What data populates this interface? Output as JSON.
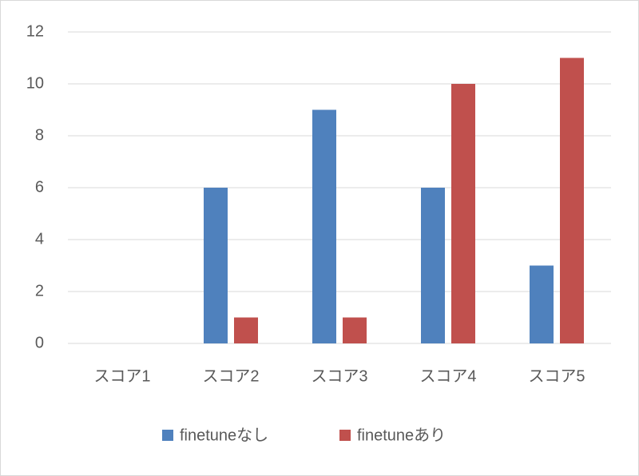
{
  "chart_data": {
    "type": "bar",
    "categories": [
      "スコア1",
      "スコア2",
      "スコア3",
      "スコア4",
      "スコア5"
    ],
    "series": [
      {
        "name": "finetuneなし",
        "color": "#4f81bd",
        "values": [
          0,
          6,
          9,
          6,
          3
        ]
      },
      {
        "name": "finetuneあり",
        "color": "#c0504d",
        "values": [
          0,
          1,
          1,
          10,
          11
        ]
      }
    ],
    "ylim": [
      0,
      12
    ],
    "yticks": [
      0,
      2,
      4,
      6,
      8,
      10,
      12
    ],
    "grid": true,
    "legend": "bottom"
  }
}
